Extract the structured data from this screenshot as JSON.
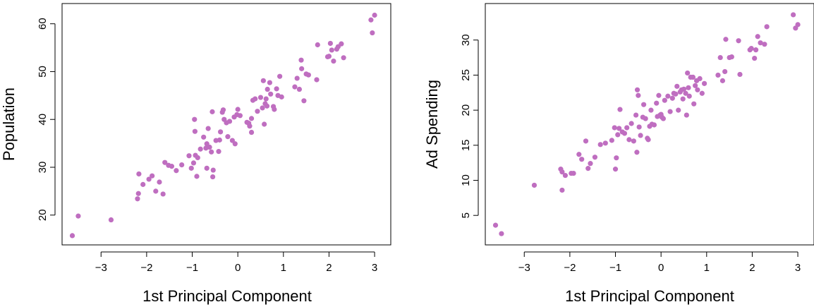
{
  "colors": {
    "point": "#bf6ec0",
    "axis": "#000000",
    "background": "#ffffff"
  },
  "chart_data": [
    {
      "type": "scatter",
      "title": "",
      "xlabel": "1st Principal Component",
      "ylabel": "Population",
      "xlim": [
        -3.7,
        3.2
      ],
      "ylim": [
        14.8,
        63.2
      ],
      "xticks": [
        -3,
        -2,
        -1,
        0,
        1,
        2,
        3
      ],
      "xtick_labels": [
        "−3",
        "−2",
        "−1",
        "0",
        "1",
        "2",
        "3"
      ],
      "yticks": [
        20,
        30,
        40,
        50,
        60
      ],
      "ytick_labels": [
        "20",
        "30",
        "40",
        "50",
        "60"
      ],
      "grid": false,
      "points": [
        [
          -3.63,
          15.7
        ],
        [
          -3.5,
          19.8
        ],
        [
          -2.78,
          19.0
        ],
        [
          -2.2,
          23.4
        ],
        [
          -2.18,
          24.5
        ],
        [
          -2.17,
          28.6
        ],
        [
          -2.08,
          26.4
        ],
        [
          -1.95,
          27.5
        ],
        [
          -1.88,
          28.2
        ],
        [
          -1.8,
          25.0
        ],
        [
          -1.72,
          26.9
        ],
        [
          -1.64,
          24.4
        ],
        [
          -1.6,
          31.0
        ],
        [
          -1.52,
          30.4
        ],
        [
          -1.45,
          30.2
        ],
        [
          -1.35,
          29.3
        ],
        [
          -1.23,
          30.5
        ],
        [
          -1.07,
          32.4
        ],
        [
          -1.02,
          29.8
        ],
        [
          -0.97,
          30.9
        ],
        [
          -0.95,
          40.0
        ],
        [
          -0.94,
          37.5
        ],
        [
          -0.93,
          32.5
        ],
        [
          -0.9,
          28.1
        ],
        [
          -0.88,
          32.0
        ],
        [
          -0.82,
          33.8
        ],
        [
          -0.75,
          36.3
        ],
        [
          -0.7,
          34.0
        ],
        [
          -0.68,
          29.8
        ],
        [
          -0.68,
          34.9
        ],
        [
          -0.65,
          38.1
        ],
        [
          -0.62,
          34.2
        ],
        [
          -0.58,
          33.2
        ],
        [
          -0.56,
          41.6
        ],
        [
          -0.55,
          28.0
        ],
        [
          -0.54,
          29.4
        ],
        [
          -0.48,
          35.6
        ],
        [
          -0.42,
          33.3
        ],
        [
          -0.4,
          35.7
        ],
        [
          -0.38,
          37.4
        ],
        [
          -0.34,
          41.5
        ],
        [
          -0.32,
          42.0
        ],
        [
          -0.3,
          40.0
        ],
        [
          -0.25,
          39.3
        ],
        [
          -0.22,
          36.4
        ],
        [
          -0.18,
          39.6
        ],
        [
          -0.12,
          35.6
        ],
        [
          -0.08,
          40.5
        ],
        [
          -0.06,
          34.9
        ],
        [
          -0.02,
          41.0
        ],
        [
          0.0,
          42.1
        ],
        [
          0.05,
          40.8
        ],
        [
          0.2,
          39.4
        ],
        [
          0.24,
          39.2
        ],
        [
          0.26,
          38.6
        ],
        [
          0.3,
          40.2
        ],
        [
          0.3,
          37.3
        ],
        [
          0.33,
          44.0
        ],
        [
          0.38,
          44.3
        ],
        [
          0.43,
          41.7
        ],
        [
          0.5,
          44.6
        ],
        [
          0.54,
          42.4
        ],
        [
          0.56,
          48.1
        ],
        [
          0.58,
          39.0
        ],
        [
          0.6,
          43.3
        ],
        [
          0.62,
          44.3
        ],
        [
          0.64,
          42.8
        ],
        [
          0.65,
          46.3
        ],
        [
          0.7,
          47.7
        ],
        [
          0.72,
          45.3
        ],
        [
          0.78,
          42.7
        ],
        [
          0.8,
          42.1
        ],
        [
          0.85,
          46.4
        ],
        [
          0.88,
          45.0
        ],
        [
          0.92,
          49.0
        ],
        [
          0.96,
          44.7
        ],
        [
          1.25,
          46.8
        ],
        [
          1.3,
          48.6
        ],
        [
          1.35,
          46.3
        ],
        [
          1.39,
          52.4
        ],
        [
          1.4,
          50.6
        ],
        [
          1.45,
          43.9
        ],
        [
          1.5,
          49.5
        ],
        [
          1.55,
          49.3
        ],
        [
          1.73,
          48.3
        ],
        [
          1.75,
          55.6
        ],
        [
          1.97,
          53.1
        ],
        [
          2.0,
          53.2
        ],
        [
          2.03,
          55.9
        ],
        [
          2.06,
          54.5
        ],
        [
          2.1,
          52.2
        ],
        [
          2.17,
          54.7
        ],
        [
          2.2,
          55.2
        ],
        [
          2.27,
          55.8
        ],
        [
          2.32,
          52.9
        ],
        [
          2.92,
          60.8
        ],
        [
          2.95,
          58.1
        ],
        [
          3.0,
          61.8
        ]
      ]
    },
    {
      "type": "scatter",
      "title": "",
      "xlabel": "1st Principal Component",
      "ylabel": "Ad Spending",
      "xlim": [
        -3.7,
        3.2
      ],
      "ylim": [
        1.5,
        34.5
      ],
      "xticks": [
        -3,
        -2,
        -1,
        0,
        1,
        2,
        3
      ],
      "xtick_labels": [
        "−3",
        "−2",
        "−1",
        "0",
        "1",
        "2",
        "3"
      ],
      "yticks": [
        5,
        10,
        15,
        20,
        25,
        30
      ],
      "ytick_labels": [
        "5",
        "10",
        "15",
        "20",
        "25",
        "30"
      ],
      "grid": false,
      "points": [
        [
          -3.63,
          3.6
        ],
        [
          -3.5,
          2.4
        ],
        [
          -2.78,
          9.3
        ],
        [
          -2.2,
          11.6
        ],
        [
          -2.17,
          8.6
        ],
        [
          -2.17,
          11.2
        ],
        [
          -2.1,
          10.7
        ],
        [
          -1.97,
          11.0
        ],
        [
          -1.92,
          11.0
        ],
        [
          -1.8,
          13.7
        ],
        [
          -1.74,
          13.0
        ],
        [
          -1.65,
          15.6
        ],
        [
          -1.6,
          11.7
        ],
        [
          -1.55,
          12.4
        ],
        [
          -1.45,
          13.3
        ],
        [
          -1.33,
          15.1
        ],
        [
          -1.22,
          15.3
        ],
        [
          -1.08,
          15.7
        ],
        [
          -1.02,
          17.5
        ],
        [
          -1.0,
          11.6
        ],
        [
          -0.98,
          13.2
        ],
        [
          -0.95,
          16.5
        ],
        [
          -0.92,
          17.4
        ],
        [
          -0.9,
          20.1
        ],
        [
          -0.85,
          16.9
        ],
        [
          -0.8,
          16.7
        ],
        [
          -0.75,
          17.5
        ],
        [
          -0.7,
          15.8
        ],
        [
          -0.65,
          18.1
        ],
        [
          -0.6,
          15.6
        ],
        [
          -0.55,
          19.3
        ],
        [
          -0.53,
          14.0
        ],
        [
          -0.52,
          22.9
        ],
        [
          -0.5,
          22.1
        ],
        [
          -0.48,
          17.6
        ],
        [
          -0.45,
          16.4
        ],
        [
          -0.4,
          19.0
        ],
        [
          -0.38,
          20.8
        ],
        [
          -0.34,
          18.8
        ],
        [
          -0.3,
          16.0
        ],
        [
          -0.28,
          15.8
        ],
        [
          -0.25,
          17.7
        ],
        [
          -0.22,
          20.0
        ],
        [
          -0.2,
          18.0
        ],
        [
          -0.15,
          17.9
        ],
        [
          -0.1,
          21.0
        ],
        [
          -0.08,
          19.1
        ],
        [
          -0.05,
          22.1
        ],
        [
          -0.02,
          19.3
        ],
        [
          0.0,
          19.4
        ],
        [
          0.02,
          19.0
        ],
        [
          0.05,
          18.8
        ],
        [
          0.08,
          21.4
        ],
        [
          0.15,
          22.0
        ],
        [
          0.2,
          19.8
        ],
        [
          0.25,
          21.7
        ],
        [
          0.28,
          22.4
        ],
        [
          0.32,
          22.3
        ],
        [
          0.35,
          23.4
        ],
        [
          0.38,
          20.0
        ],
        [
          0.42,
          22.6
        ],
        [
          0.45,
          22.9
        ],
        [
          0.48,
          21.6
        ],
        [
          0.5,
          23.0
        ],
        [
          0.54,
          22.4
        ],
        [
          0.56,
          19.3
        ],
        [
          0.58,
          25.3
        ],
        [
          0.6,
          23.2
        ],
        [
          0.62,
          22.0
        ],
        [
          0.65,
          24.7
        ],
        [
          0.7,
          24.7
        ],
        [
          0.72,
          20.9
        ],
        [
          0.75,
          23.5
        ],
        [
          0.78,
          24.2
        ],
        [
          0.8,
          22.9
        ],
        [
          0.85,
          24.5
        ],
        [
          0.9,
          22.4
        ],
        [
          0.95,
          23.8
        ],
        [
          1.25,
          25.0
        ],
        [
          1.3,
          27.5
        ],
        [
          1.35,
          24.2
        ],
        [
          1.4,
          25.5
        ],
        [
          1.42,
          30.1
        ],
        [
          1.5,
          27.5
        ],
        [
          1.55,
          27.6
        ],
        [
          1.7,
          29.9
        ],
        [
          1.73,
          25.1
        ],
        [
          1.95,
          28.6
        ],
        [
          1.98,
          28.8
        ],
        [
          2.05,
          27.4
        ],
        [
          2.08,
          28.6
        ],
        [
          2.12,
          30.5
        ],
        [
          2.18,
          29.6
        ],
        [
          2.27,
          29.4
        ],
        [
          2.32,
          31.9
        ],
        [
          2.9,
          33.6
        ],
        [
          2.95,
          31.7
        ],
        [
          3.0,
          32.2
        ]
      ]
    }
  ]
}
